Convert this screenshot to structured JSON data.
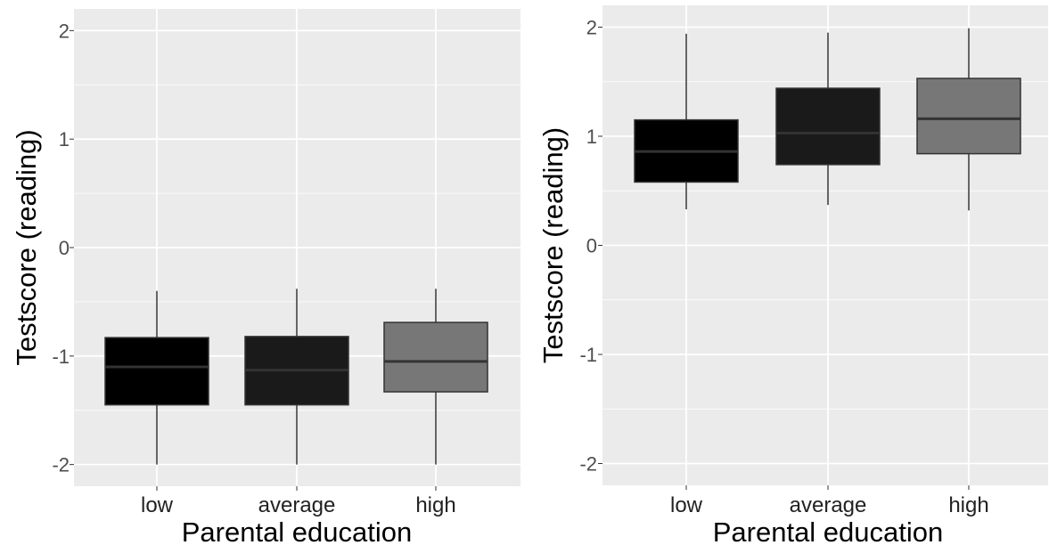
{
  "chart_data": [
    {
      "type": "boxplot",
      "xlabel": "Parental education",
      "ylabel": "Testscore (reading)",
      "categories": [
        "low",
        "average",
        "high"
      ],
      "yticks": [
        "-2",
        "-1",
        "0",
        "1",
        "2"
      ],
      "ylim": [
        -2.2,
        2.2
      ],
      "grid": true,
      "boxes": [
        {
          "category": "low",
          "min": -2.0,
          "q1": -1.45,
          "median": -1.1,
          "q3": -0.83,
          "max": -0.4,
          "fill": "#000000"
        },
        {
          "category": "average",
          "min": -2.0,
          "q1": -1.45,
          "median": -1.13,
          "q3": -0.82,
          "max": -0.38,
          "fill": "#1a1a1a"
        },
        {
          "category": "high",
          "min": -2.0,
          "q1": -1.33,
          "median": -1.05,
          "q3": -0.69,
          "max": -0.38,
          "fill": "#777777"
        }
      ]
    },
    {
      "type": "boxplot",
      "xlabel": "Parental education",
      "ylabel": "Testscore (reading)",
      "categories": [
        "low",
        "average",
        "high"
      ],
      "yticks": [
        "-2",
        "-1",
        "0",
        "1",
        "2"
      ],
      "ylim": [
        -2.2,
        2.2
      ],
      "grid": true,
      "boxes": [
        {
          "category": "low",
          "min": 0.33,
          "q1": 0.58,
          "median": 0.86,
          "q3": 1.15,
          "max": 1.94,
          "fill": "#000000"
        },
        {
          "category": "average",
          "min": 0.37,
          "q1": 0.74,
          "median": 1.03,
          "q3": 1.44,
          "max": 1.95,
          "fill": "#1a1a1a"
        },
        {
          "category": "high",
          "min": 0.32,
          "q1": 0.84,
          "median": 1.16,
          "q3": 1.53,
          "max": 1.99,
          "fill": "#777777"
        }
      ]
    }
  ],
  "colors": {
    "panel_background": "#ebebeb",
    "grid_line": "#ffffff",
    "axis_text": "#4d4d4d",
    "title_text": "#000000",
    "box_outline": "#333333"
  }
}
